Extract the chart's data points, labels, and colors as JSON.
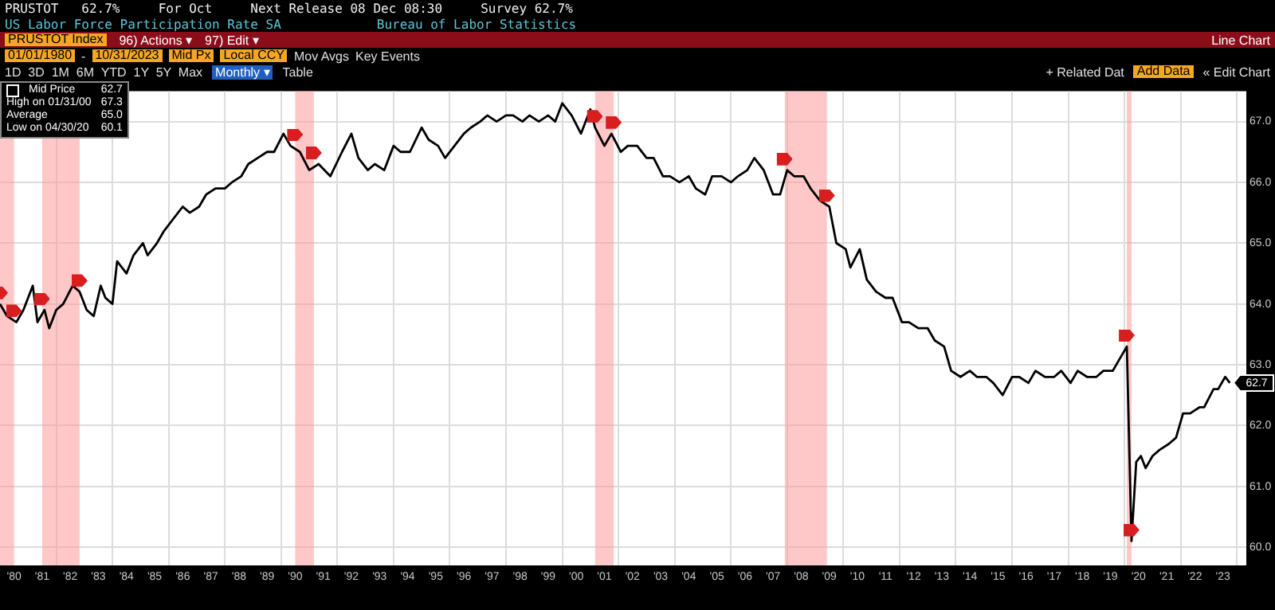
{
  "chart_data": {
    "type": "line",
    "title": "US Labor Force Participation Rate SA",
    "subtitle": "Bureau of Labor Statistics",
    "annotations": [
      "PRUSTOT   62.7%     For Oct     Next Release 08 Dec 08:30     Survey 62.7%",
      "PRUSTOT Index",
      "96) Actions ▾",
      "97) Edit ▾",
      "Line Chart",
      "01/01/1980",
      "-",
      "10/31/2023",
      "Mid Px",
      "Local CCY",
      "Mov Avgs",
      "Key Events",
      "1D  3D  1M  6M  YTD  1Y  5Y  Max",
      "Monthly ▾",
      "Table",
      "+ Related Dat",
      "Add Data",
      "« Edit Chart",
      "62.7",
      "High on 01/31/00",
      "67.3",
      "Average",
      "65.0",
      "Low on 04/30/20",
      "60.1",
      {
        "text": "62.7",
        "x": "2023-10",
        "y": 62.7
      }
    ],
    "legend": "top left",
    "grid": true,
    "x": [
      "1980-01",
      "1980-04",
      "1980-08",
      "1980-11",
      "1981-03",
      "1981-05",
      "1981-08",
      "1981-10",
      "1982-01",
      "1982-04",
      "1982-08",
      "1982-11",
      "1983-02",
      "1983-05",
      "1983-08",
      "1983-10",
      "1984-01",
      "1984-03",
      "1984-07",
      "1984-10",
      "1985-02",
      "1985-04",
      "1985-08",
      "1985-11",
      "1986-03",
      "1986-07",
      "1986-10",
      "1987-02",
      "1987-05",
      "1987-09",
      "1988-01",
      "1988-04",
      "1988-08",
      "1988-11",
      "1989-03",
      "1989-07",
      "1989-10",
      "1990-02",
      "1990-05",
      "1990-09",
      "1991-01",
      "1991-05",
      "1991-10",
      "1992-03",
      "1992-07",
      "1992-10",
      "1993-02",
      "1993-05",
      "1993-09",
      "1994-01",
      "1994-04",
      "1994-08",
      "1995-01",
      "1995-04",
      "1995-08",
      "1995-11",
      "1996-03",
      "1996-07",
      "1996-10",
      "1997-02",
      "1997-05",
      "1997-09",
      "1998-01",
      "1998-04",
      "1998-08",
      "1998-11",
      "1999-03",
      "1999-07",
      "1999-10",
      "2000-01",
      "2000-05",
      "2000-09",
      "2001-01",
      "2001-03",
      "2001-07",
      "2001-10",
      "2002-02",
      "2002-05",
      "2002-09",
      "2003-01",
      "2003-04",
      "2003-08",
      "2003-11",
      "2004-03",
      "2004-07",
      "2004-10",
      "2005-02",
      "2005-05",
      "2005-09",
      "2006-01",
      "2006-04",
      "2006-08",
      "2006-11",
      "2007-03",
      "2007-07",
      "2007-10",
      "2008-01",
      "2008-04",
      "2008-08",
      "2008-11",
      "2009-03",
      "2009-07",
      "2009-10",
      "2010-02",
      "2010-04",
      "2010-08",
      "2010-11",
      "2011-03",
      "2011-07",
      "2011-10",
      "2012-02",
      "2012-05",
      "2012-09",
      "2013-01",
      "2013-04",
      "2013-08",
      "2013-11",
      "2014-03",
      "2014-07",
      "2014-10",
      "2015-02",
      "2015-05",
      "2015-09",
      "2016-01",
      "2016-04",
      "2016-08",
      "2016-11",
      "2017-03",
      "2017-07",
      "2017-10",
      "2018-02",
      "2018-05",
      "2018-09",
      "2019-01",
      "2019-04",
      "2019-08",
      "2019-11",
      "2020-02",
      "2020-04",
      "2020-06",
      "2020-08",
      "2020-10",
      "2021-01",
      "2021-04",
      "2021-08",
      "2021-11",
      "2022-02",
      "2022-05",
      "2022-09",
      "2022-11",
      "2023-03",
      "2023-05",
      "2023-08",
      "2023-10"
    ],
    "series": [
      {
        "name": "Mid Price",
        "color": "#000000",
        "values": [
          64.0,
          63.8,
          63.7,
          63.9,
          64.3,
          63.7,
          63.9,
          63.6,
          63.9,
          64.0,
          64.3,
          64.2,
          63.9,
          63.8,
          64.3,
          64.1,
          64.0,
          64.7,
          64.5,
          64.8,
          65.0,
          64.8,
          65.0,
          65.2,
          65.4,
          65.6,
          65.5,
          65.6,
          65.8,
          65.9,
          65.9,
          66.0,
          66.1,
          66.3,
          66.4,
          66.5,
          66.5,
          66.8,
          66.6,
          66.5,
          66.2,
          66.3,
          66.1,
          66.5,
          66.8,
          66.4,
          66.2,
          66.3,
          66.2,
          66.6,
          66.5,
          66.5,
          66.9,
          66.7,
          66.6,
          66.4,
          66.6,
          66.8,
          66.9,
          67.0,
          67.1,
          67.0,
          67.1,
          67.1,
          67.0,
          67.1,
          67.0,
          67.1,
          67.0,
          67.3,
          67.1,
          66.8,
          67.2,
          66.9,
          66.6,
          66.8,
          66.5,
          66.6,
          66.6,
          66.4,
          66.4,
          66.1,
          66.1,
          66.0,
          66.1,
          65.9,
          65.8,
          66.1,
          66.1,
          66.0,
          66.1,
          66.2,
          66.4,
          66.2,
          65.8,
          65.8,
          66.2,
          66.1,
          66.1,
          65.9,
          65.7,
          65.6,
          65.0,
          64.9,
          64.6,
          64.9,
          64.4,
          64.2,
          64.1,
          64.1,
          63.7,
          63.7,
          63.6,
          63.6,
          63.4,
          63.3,
          62.9,
          62.8,
          62.9,
          62.8,
          62.8,
          62.7,
          62.5,
          62.8,
          62.8,
          62.7,
          62.9,
          62.8,
          62.8,
          62.9,
          62.7,
          62.9,
          62.8,
          62.8,
          62.9,
          62.9,
          63.1,
          63.3,
          60.1,
          61.4,
          61.5,
          61.3,
          61.5,
          61.6,
          61.7,
          61.8,
          62.2,
          62.2,
          62.3,
          62.3,
          62.6,
          62.6,
          62.8,
          62.7
        ]
      }
    ],
    "xlim": [
      "1980-01",
      "2024-05"
    ],
    "xticks": [
      {
        "value": "1980-07",
        "label": "'80"
      },
      {
        "value": "1981-07",
        "label": "'81"
      },
      {
        "value": "1982-07",
        "label": "'82"
      },
      {
        "value": "1983-07",
        "label": "'83"
      },
      {
        "value": "1984-07",
        "label": "'84"
      },
      {
        "value": "1985-07",
        "label": "'85"
      },
      {
        "value": "1986-07",
        "label": "'86"
      },
      {
        "value": "1987-07",
        "label": "'87"
      },
      {
        "value": "1988-07",
        "label": "'88"
      },
      {
        "value": "1989-07",
        "label": "'89"
      },
      {
        "value": "1990-07",
        "label": "'90"
      },
      {
        "value": "1991-07",
        "label": "'91"
      },
      {
        "value": "1992-07",
        "label": "'92"
      },
      {
        "value": "1993-07",
        "label": "'93"
      },
      {
        "value": "1994-07",
        "label": "'94"
      },
      {
        "value": "1995-07",
        "label": "'95"
      },
      {
        "value": "1996-07",
        "label": "'96"
      },
      {
        "value": "1997-07",
        "label": "'97"
      },
      {
        "value": "1998-07",
        "label": "'98"
      },
      {
        "value": "1999-07",
        "label": "'99"
      },
      {
        "value": "2000-07",
        "label": "'00"
      },
      {
        "value": "2001-07",
        "label": "'01"
      },
      {
        "value": "2002-07",
        "label": "'02"
      },
      {
        "value": "2003-07",
        "label": "'03"
      },
      {
        "value": "2004-07",
        "label": "'04"
      },
      {
        "value": "2005-07",
        "label": "'05"
      },
      {
        "value": "2006-07",
        "label": "'06"
      },
      {
        "value": "2007-07",
        "label": "'07"
      },
      {
        "value": "2008-07",
        "label": "'08"
      },
      {
        "value": "2009-07",
        "label": "'09"
      },
      {
        "value": "2010-07",
        "label": "'10"
      },
      {
        "value": "2011-07",
        "label": "'11"
      },
      {
        "value": "2012-07",
        "label": "'12"
      },
      {
        "value": "2013-07",
        "label": "'13"
      },
      {
        "value": "2014-07",
        "label": "'14"
      },
      {
        "value": "2015-07",
        "label": "'15"
      },
      {
        "value": "2016-07",
        "label": "'16"
      },
      {
        "value": "2017-07",
        "label": "'17"
      },
      {
        "value": "2018-07",
        "label": "'18"
      },
      {
        "value": "2019-07",
        "label": "'19"
      },
      {
        "value": "2020-07",
        "label": "'20"
      },
      {
        "value": "2021-07",
        "label": "'21"
      },
      {
        "value": "2022-07",
        "label": "'22"
      },
      {
        "value": "2023-07",
        "label": "'23"
      },
      {
        "value": "1982",
        "label": null
      },
      {
        "value": "1984",
        "label": null
      },
      {
        "value": "1986",
        "label": null
      },
      {
        "value": "1988",
        "label": null
      },
      {
        "value": "1990",
        "label": null
      },
      {
        "value": "1992",
        "label": null
      },
      {
        "value": "1994",
        "label": null
      },
      {
        "value": "1996",
        "label": null
      },
      {
        "value": "1998",
        "label": null
      },
      {
        "value": "2000",
        "label": null
      },
      {
        "value": "2002",
        "label": null
      },
      {
        "value": "2004",
        "label": null
      },
      {
        "value": "2006",
        "label": null
      },
      {
        "value": "2008",
        "label": null
      },
      {
        "value": "2010",
        "label": null
      },
      {
        "value": "2012",
        "label": null
      },
      {
        "value": "2014",
        "label": null
      },
      {
        "value": "2016",
        "label": null
      },
      {
        "value": "2018",
        "label": null
      },
      {
        "value": "2020",
        "label": null
      },
      {
        "value": "2022",
        "label": null
      },
      {
        "value": "2024",
        "label": null
      }
    ],
    "ylim": [
      59.7,
      67.5
    ],
    "yticks": [
      {
        "value": 60,
        "label": "60.0"
      },
      {
        "value": 61,
        "label": "61.0"
      },
      {
        "value": 62,
        "label": "62.0"
      },
      {
        "value": 63,
        "label": "63.0"
      },
      {
        "value": 64,
        "label": "64.0"
      },
      {
        "value": 65,
        "label": "65.0"
      },
      {
        "value": 66,
        "label": "66.0"
      },
      {
        "value": 67,
        "label": "67.0"
      }
    ],
    "bands": [
      {
        "axis": "x",
        "from": "1980-01",
        "to": "1980-07",
        "color": "#ff9a9a"
      },
      {
        "axis": "x",
        "from": "1981-07",
        "to": "1982-11",
        "color": "#ff9a9a"
      },
      {
        "axis": "x",
        "from": "1990-07",
        "to": "1991-03",
        "color": "#ff9a9a"
      },
      {
        "axis": "x",
        "from": "2001-03",
        "to": "2001-11",
        "color": "#ff9a9a"
      },
      {
        "axis": "x",
        "from": "2007-12",
        "to": "2009-06",
        "color": "#ff9a9a"
      },
      {
        "axis": "x",
        "from": "2020-02",
        "to": "2020-04",
        "color": "#ff9a9a"
      }
    ]
  }
}
